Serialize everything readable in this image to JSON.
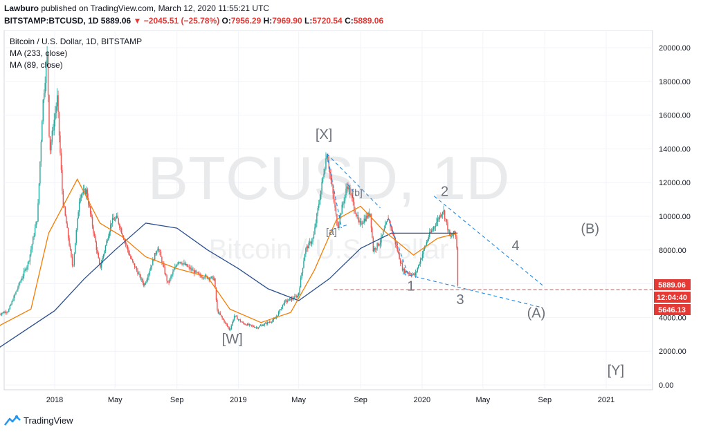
{
  "header": {
    "author": "Lawburo",
    "published": "published on TradingView.com, March 12, 2020 11:55:21 UTC",
    "ticker": "BITSTAMP:BTCUSD, 1D",
    "last": "5889.06",
    "change": "−2045.51 (−25.78%)",
    "o_label": "O:",
    "o": "7956.29",
    "h_label": "H:",
    "h": "7969.90",
    "l_label": "L:",
    "l": "5720.54",
    "c_label": "C:",
    "c": "5889.06"
  },
  "legend": {
    "symbol": "Bitcoin / U.S. Dollar, 1D, BITSTAMP",
    "ma1": "MA (233, close)",
    "ma2": "MA (89, close)"
  },
  "watermark": {
    "big": "BTCUSD, 1D",
    "small": "Bitcoin / U.S. Dollar"
  },
  "price_tags": {
    "last": "5889.06",
    "countdown": "12:04:40",
    "low": "5646.13"
  },
  "footer": {
    "brand": "TradingView"
  },
  "colors": {
    "up": "#26a69a",
    "down": "#ef5350",
    "ma233": "#2a4f8f",
    "ma89": "#f57c00",
    "wave": "#6b6f78",
    "dashed": "#1e88e5",
    "tag": "#e53935"
  },
  "chart_data": {
    "type": "candlestick",
    "title": "Bitcoin / U.S. Dollar, 1D, BITSTAMP",
    "x_ticks": [
      "2018",
      "May",
      "Sep",
      "2019",
      "May",
      "Sep",
      "2020",
      "May",
      "Sep",
      "2021"
    ],
    "x_tick_dates": [
      "2018-01-01",
      "2018-05-01",
      "2018-09-01",
      "2019-01-01",
      "2019-05-01",
      "2019-09-01",
      "2020-01-01",
      "2020-05-01",
      "2020-09-01",
      "2021-01-01"
    ],
    "y_ticks": [
      "0.00",
      "2000.00",
      "4000.00",
      "6000.00",
      "8000.00",
      "10000.00",
      "12000.00",
      "14000.00",
      "16000.00",
      "18000.00",
      "20000.00"
    ],
    "ylim": [
      0,
      20000
    ],
    "xlim": [
      "2017-09-12",
      "2021-03-15"
    ],
    "price_path": [
      [
        "2017-09-12",
        4200
      ],
      [
        "2017-10-01",
        4400
      ],
      [
        "2017-10-20",
        5800
      ],
      [
        "2017-11-10",
        7300
      ],
      [
        "2017-11-28",
        10000
      ],
      [
        "2017-12-08",
        16500
      ],
      [
        "2017-12-17",
        19600
      ],
      [
        "2017-12-22",
        13800
      ],
      [
        "2018-01-06",
        17000
      ],
      [
        "2018-01-17",
        11000
      ],
      [
        "2018-02-06",
        6900
      ],
      [
        "2018-02-20",
        11300
      ],
      [
        "2018-03-05",
        11500
      ],
      [
        "2018-04-01",
        6900
      ],
      [
        "2018-04-24",
        9700
      ],
      [
        "2018-05-05",
        9900
      ],
      [
        "2018-06-01",
        7500
      ],
      [
        "2018-06-28",
        5900
      ],
      [
        "2018-07-25",
        8200
      ],
      [
        "2018-08-14",
        6000
      ],
      [
        "2018-09-04",
        7400
      ],
      [
        "2018-10-15",
        6500
      ],
      [
        "2018-11-14",
        6300
      ],
      [
        "2018-11-20",
        4400
      ],
      [
        "2018-12-15",
        3250
      ],
      [
        "2018-12-24",
        4100
      ],
      [
        "2019-01-10",
        3650
      ],
      [
        "2019-02-07",
        3400
      ],
      [
        "2019-03-15",
        3900
      ],
      [
        "2019-04-02",
        4900
      ],
      [
        "2019-04-30",
        5300
      ],
      [
        "2019-05-14",
        8000
      ],
      [
        "2019-05-30",
        8700
      ],
      [
        "2019-06-26",
        13800
      ],
      [
        "2019-07-17",
        9400
      ],
      [
        "2019-08-06",
        11900
      ],
      [
        "2019-08-29",
        9500
      ],
      [
        "2019-09-20",
        10200
      ],
      [
        "2019-09-26",
        8000
      ],
      [
        "2019-10-10",
        8500
      ],
      [
        "2019-10-26",
        9900
      ],
      [
        "2019-11-24",
        6800
      ],
      [
        "2019-12-18",
        6500
      ],
      [
        "2020-01-14",
        8800
      ],
      [
        "2020-02-12",
        10400
      ],
      [
        "2020-02-26",
        8700
      ],
      [
        "2020-03-07",
        9100
      ],
      [
        "2020-03-11",
        7900
      ],
      [
        "2020-03-12",
        5889
      ]
    ],
    "ma_233": [
      [
        "2017-09-12",
        2200
      ],
      [
        "2018-01-01",
        4400
      ],
      [
        "2018-03-01",
        6300
      ],
      [
        "2018-05-01",
        8000
      ],
      [
        "2018-07-01",
        9600
      ],
      [
        "2018-09-01",
        9300
      ],
      [
        "2018-11-01",
        8000
      ],
      [
        "2019-01-01",
        6900
      ],
      [
        "2019-03-01",
        5700
      ],
      [
        "2019-05-01",
        5000
      ],
      [
        "2019-07-01",
        6300
      ],
      [
        "2019-09-01",
        8100
      ],
      [
        "2019-11-01",
        9000
      ],
      [
        "2020-01-01",
        9000
      ],
      [
        "2020-03-12",
        9000
      ]
    ],
    "ma_89": [
      [
        "2017-09-12",
        3500
      ],
      [
        "2017-11-15",
        4500
      ],
      [
        "2017-12-20",
        9000
      ],
      [
        "2018-02-15",
        12200
      ],
      [
        "2018-04-01",
        9600
      ],
      [
        "2018-05-15",
        8800
      ],
      [
        "2018-07-01",
        7600
      ],
      [
        "2018-09-01",
        6900
      ],
      [
        "2018-11-01",
        6400
      ],
      [
        "2018-12-15",
        4500
      ],
      [
        "2019-02-15",
        3700
      ],
      [
        "2019-04-15",
        4300
      ],
      [
        "2019-06-01",
        6800
      ],
      [
        "2019-07-15",
        9800
      ],
      [
        "2019-09-01",
        10600
      ],
      [
        "2019-10-15",
        9200
      ],
      [
        "2019-12-15",
        7700
      ],
      [
        "2020-02-01",
        8700
      ],
      [
        "2020-03-12",
        9000
      ]
    ],
    "wave_labels": [
      {
        "text": "[W]",
        "date": "2018-12-20",
        "price": 2450
      },
      {
        "text": "[X]",
        "date": "2019-06-20",
        "price": 14600
      },
      {
        "text": "[a]",
        "date": "2019-07-05",
        "price": 8900
      },
      {
        "text": "[b]",
        "date": "2019-08-25",
        "price": 11200
      },
      {
        "text": "1",
        "date": "2019-12-10",
        "price": 5600
      },
      {
        "text": "2",
        "date": "2020-02-15",
        "price": 11200
      },
      {
        "text": "3",
        "date": "2020-03-17",
        "price": 4800
      },
      {
        "text": "4",
        "date": "2020-07-05",
        "price": 8000
      },
      {
        "text": "(A)",
        "date": "2020-08-15",
        "price": 4000
      },
      {
        "text": "(B)",
        "date": "2020-11-30",
        "price": 9000
      },
      {
        "text": "[Y]",
        "date": "2021-01-20",
        "price": 600
      }
    ],
    "trend_lines": [
      [
        [
          "2019-06-26",
          13700
        ],
        [
          "2019-10-10",
          10500
        ]
      ],
      [
        [
          "2019-06-26",
          13700
        ],
        [
          "2019-07-25",
          9300
        ]
      ],
      [
        [
          "2019-07-05",
          9200
        ],
        [
          "2019-08-06",
          9500
        ]
      ],
      [
        [
          "2019-08-06",
          11900
        ],
        [
          "2019-08-25",
          11200
        ]
      ],
      [
        [
          "2019-11-24",
          6600
        ],
        [
          "2020-08-25",
          4600
        ]
      ],
      [
        [
          "2019-10-26",
          9900
        ],
        [
          "2019-12-05",
          6500
        ]
      ],
      [
        [
          "2020-01-25",
          11200
        ],
        [
          "2020-09-01",
          5800
        ]
      ]
    ],
    "horizontal_line": {
      "price": 5646,
      "from": "2019-07-10"
    }
  }
}
